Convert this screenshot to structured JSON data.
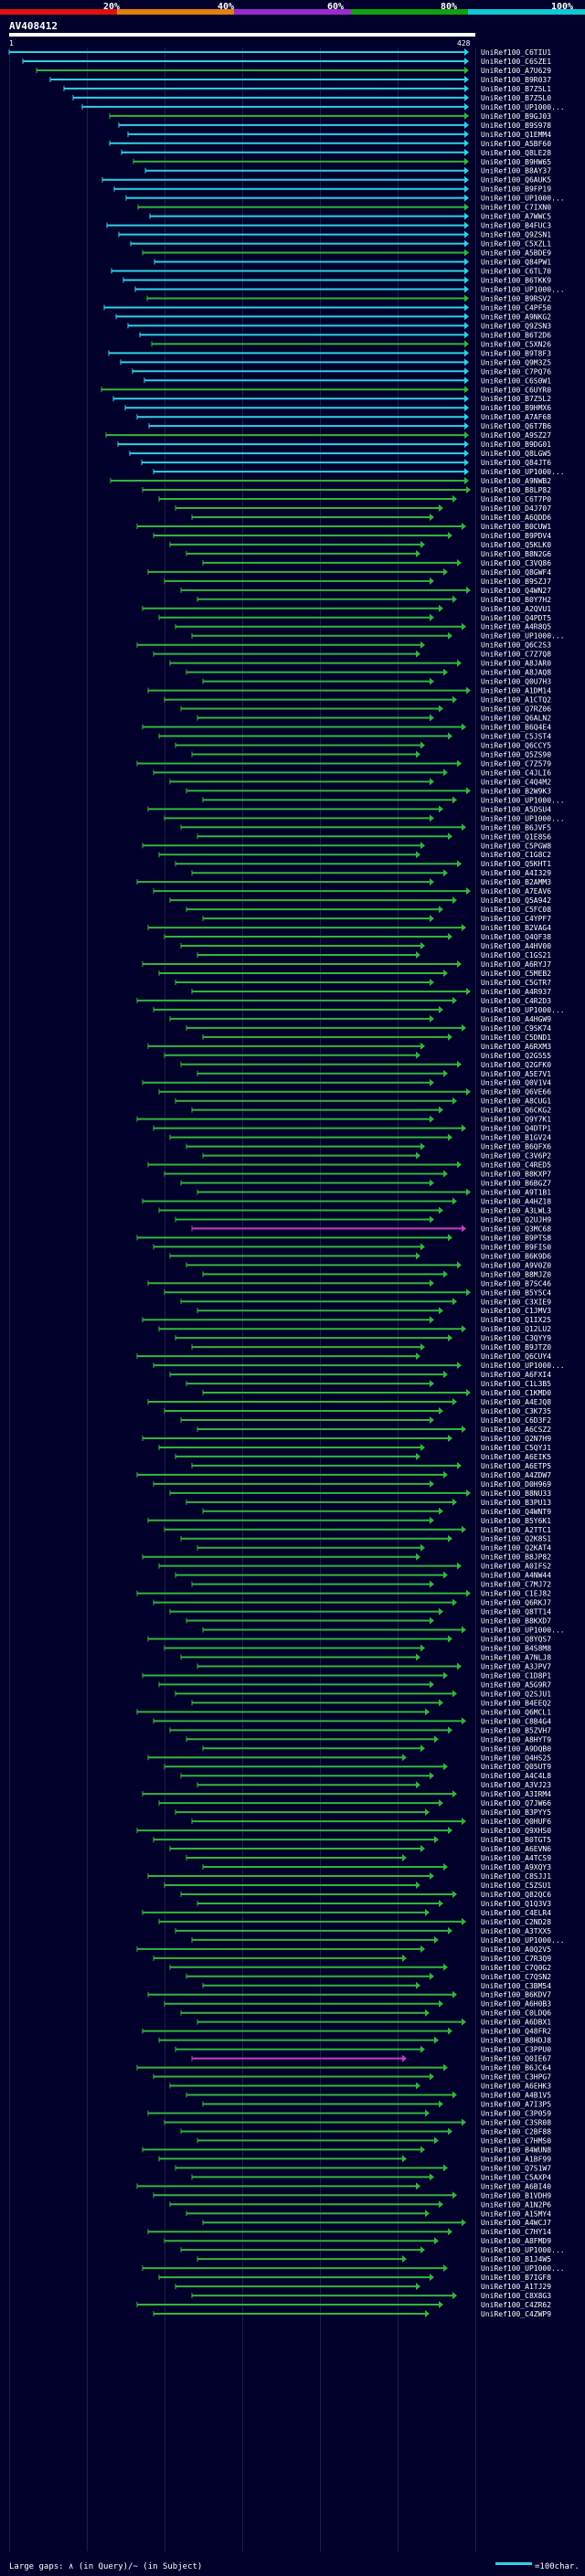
{
  "chart_data": {
    "type": "alignment-hits",
    "title": "AV408412",
    "query_length": 428,
    "axis_start_label": "1",
    "axis_end_label": "428",
    "scale": {
      "labels": [
        "20%",
        "40%",
        "60%",
        "80%",
        "100%"
      ],
      "colors": [
        "#e01010",
        "#e08010",
        "#9a2ad0",
        "#10a010",
        "#10c8d8"
      ]
    },
    "legend": {
      "gaps_text": "Large gaps: ∧ (in Query)/~ (in Subject)",
      "bar_text": "=100char."
    },
    "colors": {
      "cyan": "#2fd0e8",
      "green": "#34b43c",
      "magenta": "#c83cc8",
      "axis": "#ffffff",
      "grid": "#3c3c64"
    },
    "hit_ids": [
      "UniRef100_C6TIU1",
      "UniRef100_C6SZE1",
      "UniRef100_A7U629",
      "UniRef100_B9R037",
      "UniRef100_B7Z5L1",
      "UniRef100_B7Z5L0",
      "UniRef100_UP1000...",
      "UniRef100_B9GJ03",
      "UniRef100_B9S978",
      "UniRef100_Q1EMM4",
      "UniRef100_A5BF60",
      "UniRef100_Q8LE28",
      "UniRef100_B9HW65",
      "UniRef100_B8AY37",
      "UniRef100_Q6AUK5",
      "UniRef100_B9FP19",
      "UniRef100_UP1000...",
      "UniRef100_C7IXN0",
      "UniRef100_A7WWC5",
      "UniRef100_B4FUC3",
      "UniRef100_Q9ZSN1",
      "UniRef100_C5XZL1",
      "UniRef100_A5BDE9",
      "UniRef100_Q84PW1",
      "UniRef100_C6TL70",
      "UniRef100_B6TKK9",
      "UniRef100_UP1000...",
      "UniRef100_B9RSV2",
      "UniRef100_C4PF50",
      "UniRef100_A9NKG2",
      "UniRef100_Q9ZSN3",
      "UniRef100_B6T2D6",
      "UniRef100_C5XN26",
      "UniRef100_B9T8F3",
      "UniRef100_Q9M3Z5",
      "UniRef100_C7PQ76",
      "UniRef100_C6S0W1",
      "UniRef100_C6UYR0",
      "UniRef100_B7Z5L2",
      "UniRef100_B9HMX6",
      "UniRef100_A7AF68",
      "UniRef100_Q6T7B6",
      "UniRef100_A9SZ27",
      "UniRef100_B9DG01",
      "UniRef100_Q8LGW5",
      "UniRef100_Q84JT6",
      "UniRef100_UP1000...",
      "UniRef100_A9NWB2",
      "UniRef100_B8LP82",
      "UniRef100_C6T7P0",
      "UniRef100_D4J707",
      "UniRef100_A6QDD6",
      "UniRef100_B0CUW1",
      "UniRef100_B9PDV4",
      "UniRef100_Q5KLK0",
      "UniRef100_B8N2G6",
      "UniRef100_C3VQ86",
      "UniRef100_Q8GWF4",
      "UniRef100_B9SZJ7",
      "UniRef100_Q4WN27",
      "UniRef100_B0Y7H2",
      "UniRef100_A2QVU1",
      "UniRef100_Q4PDT5",
      "UniRef100_A4R8Q5",
      "UniRef100_UP1000...",
      "UniRef100_Q6C2S3",
      "UniRef100_C7Z7Q8",
      "UniRef100_A8JAR0",
      "UniRef100_A8JAQ8",
      "UniRef100_Q0U7H3",
      "UniRef100_A1DM14",
      "UniRef100_A1CTQ2",
      "UniRef100_Q7RZ06",
      "UniRef100_Q6ALN2",
      "UniRef100_B6Q4E4",
      "UniRef100_C5JST4",
      "UniRef100_Q6CCY5",
      "UniRef100_Q5ZS90",
      "UniRef100_C7Z579",
      "UniRef100_C4JLI6",
      "UniRef100_C4Q4M2",
      "UniRef100_B2W9K3",
      "UniRef100_UP1000...",
      "UniRef100_A5DSU4",
      "UniRef100_UP1000...",
      "UniRef100_B6JVF5",
      "UniRef100_Q1E8S6",
      "UniRef100_C5PGW8",
      "UniRef100_C1G8C2",
      "UniRef100_Q5KHT1",
      "UniRef100_A4I329",
      "UniRef100_B2AMM3",
      "UniRef100_A7EAV6",
      "UniRef100_Q5A942",
      "UniRef100_C5FC08",
      "UniRef100_C4YPF7",
      "UniRef100_B2VAG4",
      "UniRef100_Q4QF38",
      "UniRef100_A4HV00",
      "UniRef100_C1GS21",
      "UniRef100_A6RYJ7",
      "UniRef100_C5MEB2",
      "UniRef100_C5GTR7",
      "UniRef100_A4R937",
      "UniRef100_C4R2D3",
      "UniRef100_UP1000...",
      "UniRef100_A4HGW9",
      "UniRef100_C9SK74",
      "UniRef100_C5DND1",
      "UniRef100_A6RXM3",
      "UniRef100_Q2G555",
      "UniRef100_Q2GFK0",
      "UniRef100_A5E7V1",
      "UniRef100_Q0V1V4",
      "UniRef100_Q6VE66",
      "UniRef100_A8CUG1",
      "UniRef100_Q6CKG2",
      "UniRef100_Q9Y7K1",
      "UniRef100_Q4DTP1",
      "UniRef100_B1GV24",
      "UniRef100_B6QFX6",
      "UniRef100_C3V6P2",
      "UniRef100_C4RED5",
      "UniRef100_B8KXP7",
      "UniRef100_B6BGZ7",
      "UniRef100_A9T1B1",
      "UniRef100_A4HZ18",
      "UniRef100_A3LWL3",
      "UniRef100_Q2UJH9",
      "UniRef100_Q3MC68",
      "UniRef100_B9PTS8",
      "UniRef100_B9FIS0",
      "UniRef100_B6K9D6",
      "UniRef100_A9V0Z0",
      "UniRef100_B8MJZ0",
      "UniRef100_B7SC46",
      "UniRef100_B5Y5C4",
      "UniRef100_C3XIE9",
      "UniRef100_C1JMV3",
      "UniRef100_Q1IX25",
      "UniRef100_Q12LU2",
      "UniRef100_C3QYY9",
      "UniRef100_B9JTZ0",
      "UniRef100_Q6CUY4",
      "UniRef100_UP1000...",
      "UniRef100_A6FXI4",
      "UniRef100_C1L3B5",
      "UniRef100_C1KMD0",
      "UniRef100_A4EJQ8",
      "UniRef100_C3K735",
      "UniRef100_C6D3F2",
      "UniRef100_A6CSZ2",
      "UniRef100_Q2N7H9",
      "UniRef100_C5QYJ1",
      "UniRef100_A6EIK5",
      "UniRef100_A6ETP5",
      "UniRef100_A4ZDW7",
      "UniRef100_D0H969",
      "UniRef100_B8NU33",
      "UniRef100_B3PU13",
      "UniRef100_Q4WNT9",
      "UniRef100_B5Y6K1",
      "UniRef100_A2TTC1",
      "UniRef100_Q2K8S1",
      "UniRef100_Q2KAT4",
      "UniRef100_B8JP82",
      "UniRef100_A0IFS2",
      "UniRef100_A4NW44",
      "UniRef100_C7MJ72",
      "UniRef100_C1EJ82",
      "UniRef100_Q6RKJ7",
      "UniRef100_Q8TT14",
      "UniRef100_B8KXD7",
      "UniRef100_UP1000...",
      "UniRef100_Q8YQS7",
      "UniRef100_B4S8M8",
      "UniRef100_A7NLJ8",
      "UniRef100_A3JPV7",
      "UniRef100_C1D8P1",
      "UniRef100_A5G9R7",
      "UniRef100_Q2SJU1",
      "UniRef100_B4EEQ2",
      "UniRef100_Q6MCL1",
      "UniRef100_C8B4G4",
      "UniRef100_B5ZVH7",
      "UniRef100_A8HYT9",
      "UniRef100_A9DQB0",
      "UniRef100_Q4HS25",
      "UniRef100_Q05UT9",
      "UniRef100_A4C4L8",
      "UniRef100_A3VJ23",
      "UniRef100_A3IRM4",
      "UniRef100_Q7JW66",
      "UniRef100_B3PYY5",
      "UniRef100_Q0HUF6",
      "UniRef100_Q9XHS0",
      "UniRef100_B0TGT5",
      "UniRef100_A6EVN6",
      "UniRef100_A4TCS9",
      "UniRef100_A9XQY3",
      "UniRef100_C8SJJ1",
      "UniRef100_C5ZSU1",
      "UniRef100_Q82QC6",
      "UniRef100_Q1Q3V3",
      "UniRef100_C4ELR4",
      "UniRef100_C2ND28",
      "UniRef100_A3TXX5",
      "UniRef100_UP1000...",
      "UniRef100_A0Q2V5",
      "UniRef100_C7R3Q9",
      "UniRef100_C7Q0G2",
      "UniRef100_C7QSN2",
      "UniRef100_C3BM54",
      "UniRef100_B6KDV7",
      "UniRef100_A6H0B3",
      "UniRef100_C0LDQ6",
      "UniRef100_A6DBX1",
      "UniRef100_Q48FR2",
      "UniRef100_B8HDJ8",
      "UniRef100_C3PPU0",
      "UniRef100_Q0IE67",
      "UniRef100_B6JC64",
      "UniRef100_C3HPG7",
      "UniRef100_A6EHK3",
      "UniRef100_A4B1V5",
      "UniRef100_A7I3P5",
      "UniRef100_C3P059",
      "UniRef100_C3SR08",
      "UniRef100_C2BF88",
      "UniRef100_C7HMS0",
      "UniRef100_B4WUN8",
      "UniRef100_A1BF99",
      "UniRef100_Q7S1W7",
      "UniRef100_C5AXP4",
      "UniRef100_A6BI40",
      "UniRef100_B1VDH9",
      "UniRef100_A1N2P6",
      "UniRef100_A1SMY4",
      "UniRef100_A4WCJ7",
      "UniRef100_C7HY14",
      "UniRef100_A8FMD9",
      "UniRef100_UP1000...",
      "UniRef100_B1J4W5",
      "UniRef100_UP1000...",
      "UniRef100_B7IGF8",
      "UniRef100_A1TJ29",
      "UniRef100_C8X8G3",
      "UniRef100_C4ZR62",
      "UniRef100_C4ZWP9"
    ]
  }
}
